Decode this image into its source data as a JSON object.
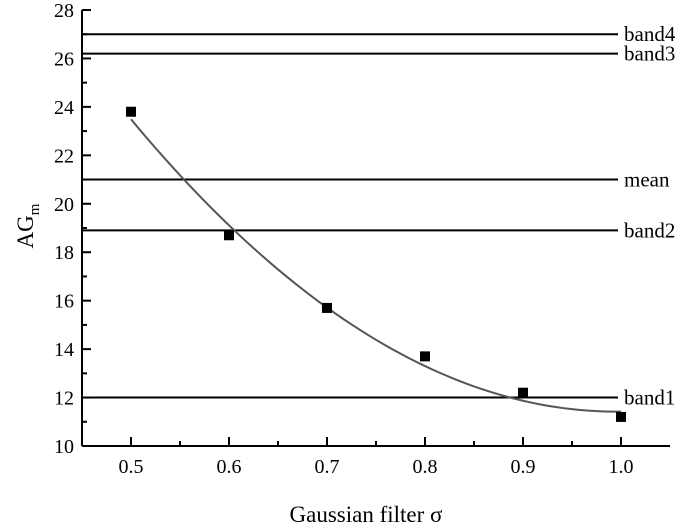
{
  "chart_data": {
    "type": "scatter",
    "xlabel": "Gaussian filter σ",
    "ylabel": "AG",
    "ylabel_subscript": "m",
    "xlim": [
      0.45,
      1.05
    ],
    "ylim": [
      10,
      28
    ],
    "x_ticks": [
      0.5,
      0.6,
      0.7,
      0.8,
      0.9,
      1.0
    ],
    "x_tick_labels": [
      "0.5",
      "0.6",
      "0.7",
      "0.8",
      "0.9",
      "1.0"
    ],
    "y_ticks": [
      10,
      12,
      14,
      16,
      18,
      20,
      22,
      24,
      26,
      28
    ],
    "y_tick_labels": [
      "10",
      "12",
      "14",
      "16",
      "18",
      "20",
      "22",
      "24",
      "26",
      "28"
    ],
    "grid": false,
    "series": [
      {
        "marker": "square",
        "color": "#000000",
        "x": [
          0.5,
          0.6,
          0.7,
          0.8,
          0.9,
          1.0
        ],
        "y": [
          23.8,
          18.7,
          15.7,
          13.7,
          12.2,
          11.2
        ]
      }
    ],
    "fit_curve": {
      "type": "quadratic",
      "color": "#555555",
      "x_range": [
        0.5,
        1.0
      ],
      "points": [
        [
          0.5,
          23.5
        ],
        [
          0.6,
          19.1
        ],
        [
          0.7,
          15.7
        ],
        [
          0.8,
          13.3
        ],
        [
          0.9,
          11.9
        ],
        [
          1.0,
          11.4
        ]
      ]
    },
    "reference_lines": [
      {
        "label": "band4",
        "y": 27.0
      },
      {
        "label": "band3",
        "y": 26.2
      },
      {
        "label": "mean",
        "y": 21.0
      },
      {
        "label": "band2",
        "y": 18.9
      },
      {
        "label": "band1",
        "y": 12.0
      }
    ]
  }
}
